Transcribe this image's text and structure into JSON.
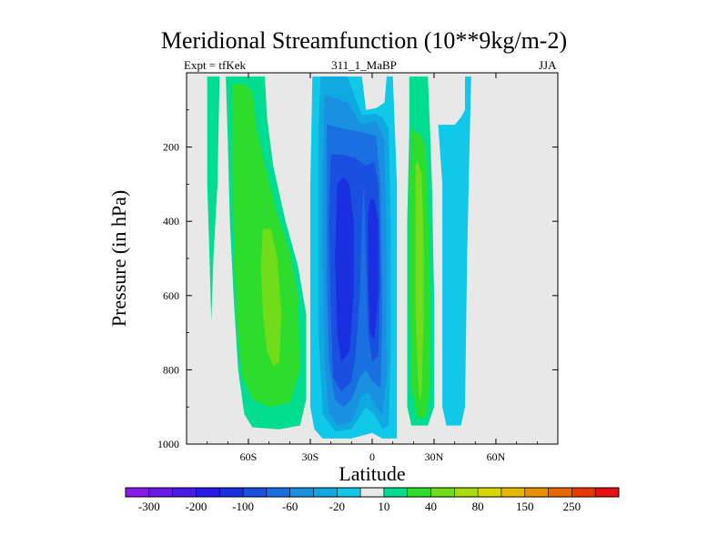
{
  "header": {
    "title": "Meridional Streamfunction (10**9kg/m-2)",
    "left_label": "Expt = tfKek",
    "center_label": "311_1_MaBP",
    "right_label": "JJA"
  },
  "chart_data": {
    "type": "contour",
    "title": "Meridional Streamfunction (10**9kg/m-2)",
    "xlabel": "Latitude",
    "ylabel": "Pressure (in hPa)",
    "xlim": [
      -90,
      90
    ],
    "ylim": [
      0,
      1000
    ],
    "y_inverted": true,
    "x_ticks": [
      {
        "value": -60,
        "label": "60S"
      },
      {
        "value": -30,
        "label": "30S"
      },
      {
        "value": 0,
        "label": "0"
      },
      {
        "value": 30,
        "label": "30N"
      },
      {
        "value": 60,
        "label": "60N"
      }
    ],
    "y_ticks": [
      {
        "value": 200,
        "label": "200"
      },
      {
        "value": 400,
        "label": "400"
      },
      {
        "value": 600,
        "label": "600"
      },
      {
        "value": 800,
        "label": "800"
      },
      {
        "value": 1000,
        "label": "1000"
      }
    ],
    "missing_color": "#e8e8e8",
    "colorbar": {
      "levels": [
        "-300",
        "-250",
        "-200",
        "-150",
        "-100",
        "-80",
        "-60",
        "-40",
        "-20",
        "-10",
        "10",
        "20",
        "40",
        "60",
        "80",
        "100",
        "150",
        "200",
        "250",
        "300"
      ],
      "tick_labels": [
        "-300",
        "-200",
        "-100",
        "-60",
        "-20",
        "10",
        "40",
        "80",
        "150",
        "250"
      ],
      "colors": [
        "#8a1ae8",
        "#6a1ae8",
        "#4a1ae8",
        "#2a1ae8",
        "#1a30e0",
        "#1a50e0",
        "#1a70e0",
        "#1a90e0",
        "#10a8e0",
        "#10c8e8",
        "#e8e8e8",
        "#00dc90",
        "#2edc2e",
        "#70dc1a",
        "#a8dc10",
        "#d8d800",
        "#e8b800",
        "#e89000",
        "#e86800",
        "#e83800",
        "#e81010"
      ]
    },
    "regions": [
      {
        "level_index": 11,
        "color": "#00dc90",
        "ring": [
          [
            -80,
            10
          ],
          [
            -80,
            300
          ],
          [
            -79,
            470
          ],
          [
            -78,
            670
          ],
          [
            -77,
            500
          ],
          [
            -75,
            300
          ],
          [
            -74,
            10
          ]
        ]
      },
      {
        "level_index": 11,
        "color": "#00dc90",
        "ring": [
          [
            -71,
            10
          ],
          [
            -70,
            180
          ],
          [
            -69,
            400
          ],
          [
            -67,
            620
          ],
          [
            -65,
            800
          ],
          [
            -62,
            920
          ],
          [
            -58,
            955
          ],
          [
            -45,
            960
          ],
          [
            -35,
            950
          ],
          [
            -32,
            880
          ],
          [
            -32,
            650
          ],
          [
            -36,
            520
          ],
          [
            -42,
            400
          ],
          [
            -48,
            250
          ],
          [
            -51,
            120
          ],
          [
            -52,
            10
          ]
        ]
      },
      {
        "level_index": 12,
        "color": "#2edc2e",
        "ring": [
          [
            -68,
            30
          ],
          [
            -68,
            250
          ],
          [
            -67,
            450
          ],
          [
            -66,
            650
          ],
          [
            -63,
            820
          ],
          [
            -58,
            880
          ],
          [
            -50,
            900
          ],
          [
            -40,
            890
          ],
          [
            -35,
            800
          ],
          [
            -36,
            600
          ],
          [
            -40,
            480
          ],
          [
            -46,
            380
          ],
          [
            -52,
            250
          ],
          [
            -56,
            150
          ],
          [
            -58,
            50
          ],
          [
            -62,
            30
          ]
        ]
      },
      {
        "level_index": 13,
        "color": "#70dc1a",
        "ring": [
          [
            -53,
            420
          ],
          [
            -54,
            520
          ],
          [
            -53,
            650
          ],
          [
            -51,
            750
          ],
          [
            -48,
            790
          ],
          [
            -45,
            780
          ],
          [
            -44,
            650
          ],
          [
            -46,
            500
          ],
          [
            -49,
            420
          ]
        ]
      },
      {
        "level_index": 9,
        "color": "#10c8e8",
        "ring": [
          [
            -29,
            10
          ],
          [
            -30,
            300
          ],
          [
            -30,
            600
          ],
          [
            -30,
            900
          ],
          [
            -28,
            960
          ],
          [
            -24,
            985
          ],
          [
            -10,
            985
          ],
          [
            0,
            970
          ],
          [
            5,
            985
          ],
          [
            12,
            985
          ],
          [
            12,
            500
          ],
          [
            12,
            300
          ],
          [
            10,
            10
          ],
          [
            7,
            10
          ],
          [
            6,
            80
          ],
          [
            2,
            95
          ],
          [
            -3,
            100
          ],
          [
            -5,
            10
          ]
        ]
      },
      {
        "level_index": 9,
        "color": "#10c8e8",
        "ring": [
          [
            32,
            140
          ],
          [
            34,
            300
          ],
          [
            34,
            600
          ],
          [
            34,
            900
          ],
          [
            36,
            950
          ],
          [
            43,
            950
          ],
          [
            45,
            900
          ],
          [
            46,
            500
          ],
          [
            47,
            250
          ],
          [
            48,
            10
          ],
          [
            45,
            10
          ],
          [
            45,
            100
          ],
          [
            43,
            120
          ],
          [
            40,
            140
          ]
        ]
      },
      {
        "level_index": 8,
        "color": "#10a8e0",
        "ring": [
          [
            -25,
            10
          ],
          [
            -26,
            150
          ],
          [
            -26,
            400
          ],
          [
            -26,
            700
          ],
          [
            -24,
            920
          ],
          [
            -18,
            965
          ],
          [
            -10,
            960
          ],
          [
            -3,
            900
          ],
          [
            1,
            920
          ],
          [
            5,
            960
          ],
          [
            8,
            950
          ],
          [
            9,
            750
          ],
          [
            9,
            400
          ],
          [
            8,
            150
          ],
          [
            5,
            120
          ],
          [
            1,
            110
          ],
          [
            -5,
            115
          ],
          [
            -12,
            10
          ]
        ]
      },
      {
        "level_index": 7,
        "color": "#1a90e0",
        "ring": [
          [
            -23,
            60
          ],
          [
            -24,
            250
          ],
          [
            -24,
            500
          ],
          [
            -23,
            780
          ],
          [
            -21,
            920
          ],
          [
            -16,
            950
          ],
          [
            -10,
            940
          ],
          [
            -5,
            870
          ],
          [
            -2,
            860
          ],
          [
            2,
            900
          ],
          [
            5,
            920
          ],
          [
            7,
            820
          ],
          [
            7,
            500
          ],
          [
            6,
            180
          ],
          [
            2,
            130
          ],
          [
            -5,
            140
          ],
          [
            -12,
            80
          ]
        ]
      },
      {
        "level_index": 6,
        "color": "#1a70e0",
        "ring": [
          [
            -22,
            140
          ],
          [
            -22,
            300
          ],
          [
            -22,
            550
          ],
          [
            -21,
            780
          ],
          [
            -18,
            880
          ],
          [
            -14,
            900
          ],
          [
            -10,
            880
          ],
          [
            -6,
            820
          ],
          [
            -3,
            800
          ],
          [
            0,
            830
          ],
          [
            4,
            850
          ],
          [
            5,
            650
          ],
          [
            4,
            300
          ],
          [
            2,
            170
          ],
          [
            -5,
            160
          ],
          [
            -14,
            150
          ]
        ]
      },
      {
        "level_index": 5,
        "color": "#1a50e0",
        "ring": [
          [
            -20,
            220
          ],
          [
            -21,
            400
          ],
          [
            -20,
            650
          ],
          [
            -19,
            820
          ],
          [
            -15,
            860
          ],
          [
            -10,
            830
          ],
          [
            -8,
            760
          ],
          [
            -6,
            600
          ],
          [
            -5,
            400
          ],
          [
            -4,
            300
          ],
          [
            -3,
            500
          ],
          [
            -2,
            700
          ],
          [
            0,
            780
          ],
          [
            3,
            760
          ],
          [
            4,
            560
          ],
          [
            3,
            300
          ],
          [
            1,
            240
          ],
          [
            -3,
            250
          ],
          [
            -8,
            230
          ],
          [
            -14,
            220
          ]
        ]
      },
      {
        "level_index": 4,
        "color": "#1a30e0",
        "ring": [
          [
            -17,
            300
          ],
          [
            -18,
            500
          ],
          [
            -17,
            700
          ],
          [
            -15,
            780
          ],
          [
            -11,
            750
          ],
          [
            -9,
            600
          ],
          [
            -9,
            400
          ],
          [
            -11,
            300
          ],
          [
            -14,
            280
          ]
        ]
      },
      {
        "level_index": 4,
        "color": "#1a30e0",
        "ring": [
          [
            -2,
            380
          ],
          [
            -2,
            550
          ],
          [
            -1,
            700
          ],
          [
            1,
            720
          ],
          [
            3,
            600
          ],
          [
            3,
            400
          ],
          [
            1,
            340
          ],
          [
            -1,
            340
          ]
        ]
      },
      {
        "level_index": 11,
        "color": "#00dc90",
        "ring": [
          [
            18,
            10
          ],
          [
            18,
            150
          ],
          [
            17,
            400
          ],
          [
            17,
            700
          ],
          [
            17,
            900
          ],
          [
            19,
            950
          ],
          [
            27,
            950
          ],
          [
            30,
            900
          ],
          [
            30,
            600
          ],
          [
            29,
            300
          ],
          [
            28,
            150
          ],
          [
            27,
            10
          ]
        ]
      },
      {
        "level_index": 12,
        "color": "#2edc2e",
        "ring": [
          [
            19,
            150
          ],
          [
            18,
            300
          ],
          [
            18,
            600
          ],
          [
            19,
            850
          ],
          [
            22,
            930
          ],
          [
            26,
            930
          ],
          [
            28,
            850
          ],
          [
            28,
            600
          ],
          [
            27,
            350
          ],
          [
            26,
            200
          ],
          [
            24,
            170
          ]
        ]
      },
      {
        "level_index": 13,
        "color": "#70dc1a",
        "ring": [
          [
            21,
            250
          ],
          [
            21,
            450
          ],
          [
            21,
            650
          ],
          [
            22,
            800
          ],
          [
            23,
            880
          ],
          [
            24,
            860
          ],
          [
            25,
            650
          ],
          [
            25,
            450
          ],
          [
            24,
            270
          ],
          [
            22,
            240
          ]
        ]
      }
    ]
  }
}
